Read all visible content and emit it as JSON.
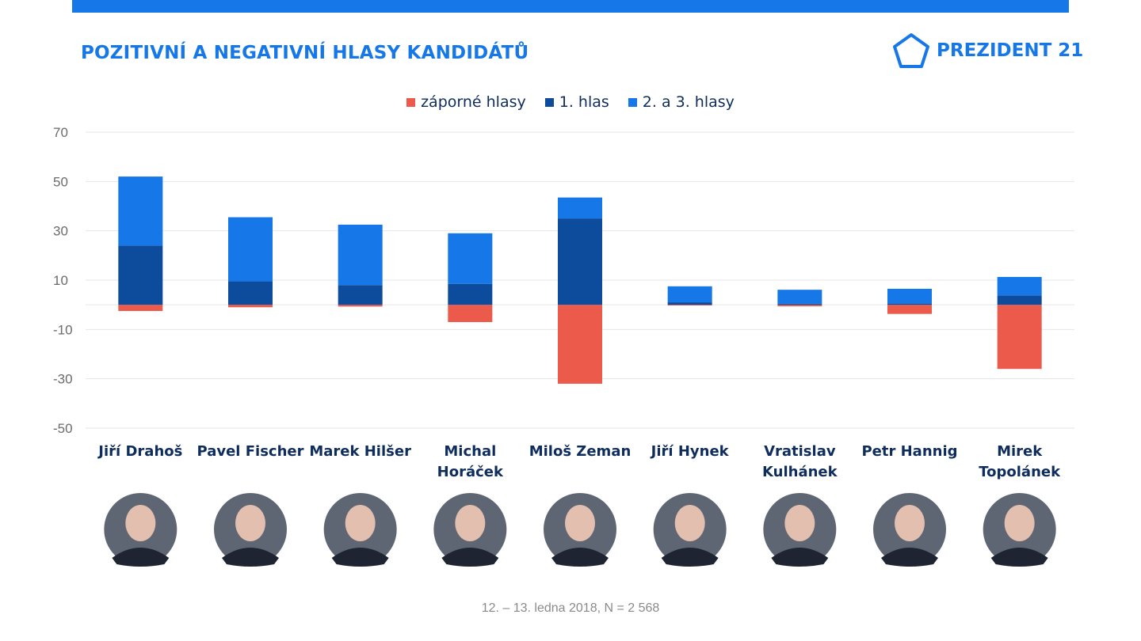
{
  "title": "POZITIVNÍ A NEGATIVNÍ HLASY KANDIDÁTŮ",
  "logo": {
    "text": "PREZIDENT 21",
    "icon": "pentagon-icon",
    "color": "#1577e8"
  },
  "colors": {
    "negative": "#ec5a4c",
    "first": "#0d4c9c",
    "second": "#1577e8"
  },
  "legend": [
    {
      "label": "záporné hlasy",
      "key": "negative"
    },
    {
      "label": "1. hlas",
      "key": "first"
    },
    {
      "label": "2. a 3. hlasy",
      "key": "second"
    }
  ],
  "note": "12. – 13. ledna 2018, N = 2 568",
  "chart_data": {
    "type": "bar",
    "stacked": true,
    "categories": [
      [
        "Jiří Drahoš"
      ],
      [
        "Pavel Fischer"
      ],
      [
        "Marek Hilšer"
      ],
      [
        "Michal",
        "Horáček"
      ],
      [
        "Miloš Zeman"
      ],
      [
        "Jiří Hynek"
      ],
      [
        "Vratislav",
        "Kulhánek"
      ],
      [
        "Petr Hannig"
      ],
      [
        "Mirek",
        "Topolánek"
      ]
    ],
    "series": [
      {
        "name": "záporné hlasy",
        "values": [
          -2.5,
          -1.0,
          -0.7,
          -7.0,
          -32.0,
          -0.3,
          -0.6,
          -3.7,
          -26.0
        ]
      },
      {
        "name": "1. hlas",
        "values": [
          24.0,
          9.5,
          8.0,
          8.5,
          35.0,
          1.0,
          0.4,
          0.5,
          3.8
        ]
      },
      {
        "name": "2. a 3. hlasy",
        "values": [
          28.0,
          26.0,
          24.5,
          20.5,
          8.5,
          6.5,
          5.7,
          6.0,
          7.5
        ]
      }
    ],
    "yticks": [
      70,
      50,
      30,
      10,
      -10,
      -30,
      -50
    ],
    "ylim": [
      -50,
      70
    ],
    "grid": true,
    "legend_position": "top-center"
  }
}
